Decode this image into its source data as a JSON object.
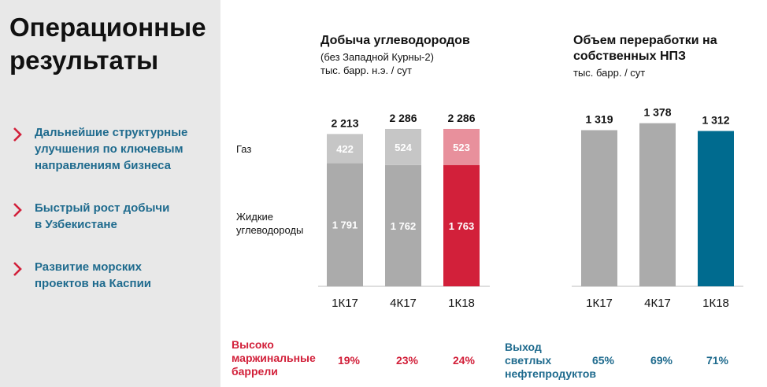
{
  "sidebar": {
    "title": "Операционные\nрезультаты",
    "items": [
      {
        "text": "Дальнейшие структурные\nулучшения по ключевым\nнаправлениям бизнеса"
      },
      {
        "text": "Быстрый рост добычи\nв Узбекистане"
      },
      {
        "text": "Развитие морских\nпроектов на Каспии"
      }
    ]
  },
  "colors": {
    "accent_red": "#d2203a",
    "accent_red_light": "#e8909c",
    "accent_blue": "#006b8f",
    "bar_gray": "#ababab",
    "bar_gray_light": "#c6c6c6",
    "sidebar_text": "#1f6b8e"
  },
  "chart_data": [
    {
      "type": "bar",
      "stacked": true,
      "title": "Добыча углеводородов",
      "subtitle": "(без Западной Курны-2)\nтыс. барр. н.э. / сут",
      "categories": [
        "1К17",
        "4К17",
        "1К18"
      ],
      "series": [
        {
          "name": "Жидкие\nуглеводороды",
          "values": [
            1791,
            1762,
            1763
          ],
          "labels": [
            "1 791",
            "1 762",
            "1 763"
          ]
        },
        {
          "name": "Газ",
          "values": [
            422,
            524,
            523
          ],
          "labels": [
            "422",
            "524",
            "523"
          ]
        }
      ],
      "totals": [
        2213,
        2286,
        2286
      ],
      "total_labels": [
        "2 213",
        "2 286",
        "2 286"
      ],
      "highlight_index": 2,
      "footer": {
        "label": "Высоко\nмаржинальные\nбаррели",
        "values": [
          "19%",
          "23%",
          "24%"
        ]
      }
    },
    {
      "type": "bar",
      "title": "Объем переработки на\nсобственных НПЗ",
      "subtitle": "тыс. барр. / сут",
      "categories": [
        "1К17",
        "4К17",
        "1К18"
      ],
      "values": [
        1319,
        1378,
        1312
      ],
      "value_labels": [
        "1 319",
        "1 378",
        "1 312"
      ],
      "highlight_index": 2,
      "footer": {
        "label": "Выход\nсветлых\nнефтепродуктов",
        "values": [
          "65%",
          "69%",
          "71%"
        ]
      }
    }
  ]
}
